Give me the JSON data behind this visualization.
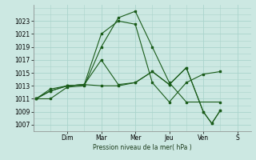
{
  "xlabel": "Pression niveau de la mer( hPa )",
  "background_color": "#cce8e2",
  "grid_color": "#aad4cc",
  "line_color": "#1a5c1a",
  "ylim": [
    1006.0,
    1025.5
  ],
  "yticks": [
    1007,
    1009,
    1011,
    1013,
    1015,
    1017,
    1019,
    1021,
    1023
  ],
  "day_labels": [
    "Dim",
    "Mar",
    "Mer",
    "Jeu",
    "Ven",
    "S"
  ],
  "day_positions": [
    1.0,
    2.0,
    3.0,
    4.0,
    5.0,
    6.0
  ],
  "xlim": [
    0.0,
    6.4
  ],
  "lines": [
    {
      "x": [
        0.08,
        0.5,
        1.0,
        1.5,
        2.0,
        2.5,
        3.0,
        3.5,
        4.0,
        4.5,
        5.5
      ],
      "y": [
        1011.0,
        1011.0,
        1012.8,
        1013.0,
        1019.0,
        1023.5,
        1024.5,
        1019.0,
        1013.5,
        1010.5,
        1010.5
      ]
    },
    {
      "x": [
        0.08,
        0.5,
        1.0,
        1.5,
        2.0,
        2.5,
        3.0,
        3.5,
        4.0,
        4.5,
        5.0,
        5.5
      ],
      "y": [
        1011.0,
        1012.5,
        1013.0,
        1013.2,
        1021.0,
        1023.0,
        1022.5,
        1013.5,
        1010.5,
        1013.5,
        1014.8,
        1015.2
      ]
    },
    {
      "x": [
        0.08,
        0.5,
        1.0,
        1.5,
        2.0,
        2.5,
        3.0,
        3.5,
        4.0,
        4.5,
        5.0,
        5.25,
        5.5
      ],
      "y": [
        1011.0,
        1012.2,
        1013.0,
        1013.2,
        1017.0,
        1013.2,
        1013.5,
        1015.2,
        1013.2,
        1015.8,
        1009.0,
        1007.2,
        1009.2
      ]
    },
    {
      "x": [
        0.08,
        0.5,
        1.0,
        1.5,
        2.0,
        2.5,
        3.0,
        3.5,
        4.0,
        4.5,
        5.0,
        5.25,
        5.5
      ],
      "y": [
        1011.0,
        1012.2,
        1013.0,
        1013.2,
        1013.0,
        1013.0,
        1013.5,
        1015.2,
        1013.2,
        1015.8,
        1009.0,
        1007.2,
        1009.2
      ]
    }
  ]
}
